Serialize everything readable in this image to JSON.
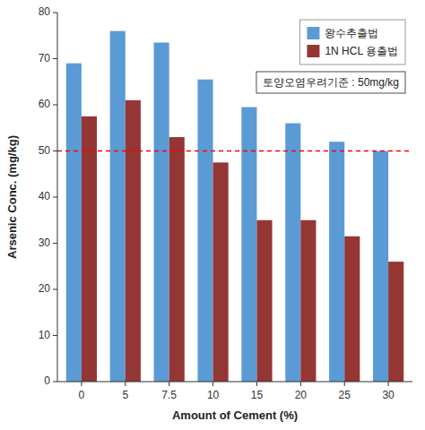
{
  "chart_data": {
    "type": "bar",
    "categories": [
      "0",
      "5",
      "7.5",
      "10",
      "15",
      "20",
      "25",
      "30"
    ],
    "series": [
      {
        "name": "왕수추출법",
        "color": "#5B9BD5",
        "values": [
          69,
          76,
          73.5,
          65.5,
          59.5,
          56,
          52,
          50
        ]
      },
      {
        "name": "1N HCL 용출법",
        "color": "#943634",
        "values": [
          57.5,
          61,
          53,
          47.5,
          35,
          35,
          31.5,
          26
        ]
      }
    ],
    "xlabel": "Amount of Cement (%)",
    "ylabel": "Arsenic Conc. (mg/kg)",
    "ylim": [
      0,
      80
    ],
    "yticks": [
      0,
      10,
      20,
      30,
      40,
      50,
      60,
      70,
      80
    ],
    "reference_line": {
      "y": 50,
      "color": "#FF0000"
    },
    "annotation": "토양오염우려기준 : 50mg/kg",
    "legend": "upper right",
    "grid": false
  }
}
